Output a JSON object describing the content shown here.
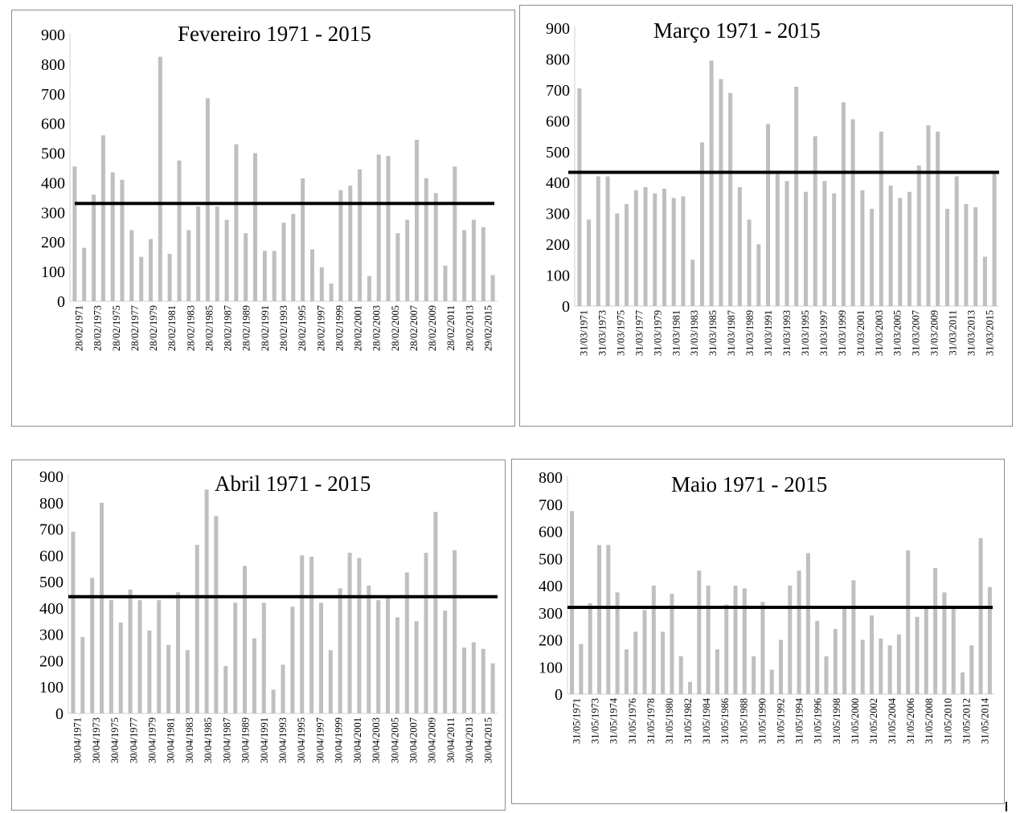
{
  "chart_data": [
    {
      "type": "bar",
      "title": "Fevereiro 1971 - 2015",
      "ylim": [
        0,
        900
      ],
      "yticks": [
        0,
        100,
        200,
        300,
        400,
        500,
        600,
        700,
        800,
        900
      ],
      "x_tick_labels": [
        "28/02/1971",
        "28/02/1973",
        "28/02/1975",
        "28/02/1977",
        "28/02/1979",
        "28/02/1981",
        "28/02/1983",
        "28/02/1985",
        "28/02/1987",
        "28/02/1989",
        "28/02/1991",
        "28/02/1993",
        "28/02/1995",
        "28/02/1997",
        "28/02/1999",
        "28/02/2001",
        "28/02/2003",
        "28/02/2005",
        "28/02/2007",
        "28/02/2009",
        "28/02/2011",
        "28/02/2013",
        "29/02/2015"
      ],
      "values": [
        455,
        180,
        360,
        560,
        435,
        410,
        240,
        150,
        210,
        825,
        160,
        475,
        240,
        320,
        685,
        320,
        275,
        530,
        230,
        500,
        170,
        170,
        265,
        295,
        415,
        175,
        115,
        60,
        375,
        390,
        445,
        85,
        495,
        490,
        230,
        275,
        545,
        415,
        365,
        120,
        455,
        240,
        275,
        250,
        88
      ],
      "reference_line": 330,
      "bar_color": "#bfbfbf",
      "line_color": "#000000",
      "grid": false
    },
    {
      "type": "bar",
      "title": "Março 1971 - 2015",
      "ylim": [
        0,
        900
      ],
      "yticks": [
        0,
        100,
        200,
        300,
        400,
        500,
        600,
        700,
        800,
        900
      ],
      "x_tick_labels": [
        "31/03/1971",
        "31/03/1973",
        "31/03/1975",
        "31/03/1977",
        "31/03/1979",
        "31/03/1981",
        "31/03/1983",
        "31/03/1985",
        "31/03/1987",
        "31/03/1989",
        "31/03/1991",
        "31/03/1993",
        "31/03/1995",
        "31/03/1997",
        "31/03/1999",
        "31/03/2001",
        "31/03/2003",
        "31/03/2005",
        "31/03/2007",
        "31/03/2009",
        "31/03/2011",
        "31/03/2013",
        "31/03/2015"
      ],
      "values": [
        705,
        280,
        420,
        420,
        300,
        330,
        375,
        385,
        365,
        380,
        350,
        355,
        150,
        530,
        795,
        735,
        690,
        385,
        280,
        200,
        590,
        430,
        405,
        710,
        370,
        550,
        405,
        365,
        660,
        605,
        375,
        315,
        565,
        390,
        350,
        370,
        455,
        585,
        565,
        315,
        420,
        330,
        320,
        160,
        430
      ],
      "reference_line": 433,
      "bar_color": "#bfbfbf",
      "line_color": "#000000",
      "grid": false
    },
    {
      "type": "bar",
      "title": "Abril 1971 - 2015",
      "ylim": [
        0,
        900
      ],
      "yticks": [
        0,
        100,
        200,
        300,
        400,
        500,
        600,
        700,
        800,
        900
      ],
      "x_tick_labels": [
        "30/04/1971",
        "30/04/1973",
        "30/04/1975",
        "30/04/1977",
        "30/04/1979",
        "30/04/1981",
        "30/04/1983",
        "30/04/1985",
        "30/04/1987",
        "30/04/1989",
        "30/04/1991",
        "30/04/1993",
        "30/04/1995",
        "30/04/1997",
        "30/04/1999",
        "30/04/2001",
        "30/04/2003",
        "30/04/2005",
        "30/04/2007",
        "30/04/2009",
        "30/04/2011",
        "30/04/2013",
        "30/04/2015"
      ],
      "values": [
        690,
        290,
        515,
        800,
        430,
        345,
        470,
        430,
        315,
        430,
        260,
        460,
        240,
        640,
        850,
        750,
        180,
        420,
        560,
        285,
        420,
        90,
        185,
        405,
        600,
        595,
        420,
        240,
        475,
        610,
        590,
        485,
        430,
        440,
        365,
        535,
        350,
        610,
        765,
        390,
        620,
        250,
        270,
        245,
        190
      ],
      "reference_line": 443,
      "bar_color": "#bfbfbf",
      "line_color": "#000000",
      "grid": false
    },
    {
      "type": "bar",
      "title": "Maio 1971 - 2015",
      "ylim": [
        0,
        800
      ],
      "yticks": [
        0,
        100,
        200,
        300,
        400,
        500,
        600,
        700,
        800
      ],
      "x_tick_labels": [
        "31/05/1971",
        "31/05/1973",
        "31/05/1974",
        "31/05/1976",
        "31/05/1978",
        "31/05/1980",
        "31/05/1982",
        "31/05/1984",
        "31/05/1986",
        "31/05/1988",
        "31/05/1990",
        "31/05/1992",
        "31/05/1994",
        "31/05/1996",
        "31/05/1998",
        "31/05/2000",
        "31/05/2002",
        "31/05/2004",
        "31/05/2006",
        "31/05/2008",
        "31/05/2010",
        "31/05/2012",
        "31/05/2014"
      ],
      "values": [
        675,
        185,
        335,
        550,
        550,
        375,
        165,
        230,
        310,
        400,
        230,
        370,
        140,
        45,
        455,
        400,
        165,
        330,
        400,
        390,
        140,
        340,
        90,
        200,
        400,
        455,
        520,
        270,
        140,
        240,
        320,
        420,
        200,
        290,
        205,
        180,
        220,
        530,
        285,
        320,
        465,
        375,
        315,
        80,
        180,
        575,
        395
      ],
      "reference_line": 320,
      "bar_color": "#bfbfbf",
      "line_color": "#000000",
      "grid": false
    }
  ]
}
